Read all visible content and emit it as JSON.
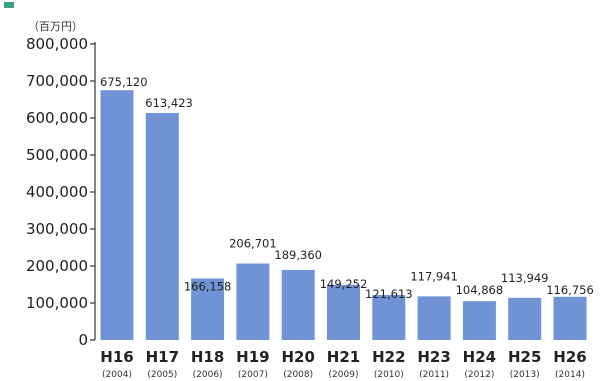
{
  "chart_data": {
    "type": "bar",
    "unit_label": "（百万円）",
    "categories": [
      "H16",
      "H17",
      "H18",
      "H19",
      "H20",
      "H21",
      "H22",
      "H23",
      "H24",
      "H25",
      "H26"
    ],
    "sub_categories": [
      "(2004)",
      "(2005)",
      "(2006)",
      "(2007)",
      "(2008)",
      "(2009)",
      "(2010)",
      "(2011)",
      "(2012)",
      "(2013)",
      "(2014)"
    ],
    "values": [
      675120,
      613423,
      166158,
      206701,
      189360,
      149252,
      121613,
      117941,
      104868,
      113949,
      116756
    ],
    "data_labels": [
      "675,120",
      "613,423",
      "166,158",
      "206,701",
      "189,360",
      "149,252",
      "121,613",
      "117,941",
      "104,868",
      "113,949",
      "116,756"
    ],
    "ylim": [
      0,
      800000
    ],
    "yticks": [
      0,
      100000,
      200000,
      300000,
      400000,
      500000,
      600000,
      700000,
      800000
    ],
    "ytick_labels": [
      "0",
      "100,000",
      "200,000",
      "300,000",
      "400,000",
      "500,000",
      "600,000",
      "700,000",
      "800,000"
    ],
    "grid": false,
    "bar_color": "#6f93d4",
    "title_marker_color": "#3aa08a"
  }
}
